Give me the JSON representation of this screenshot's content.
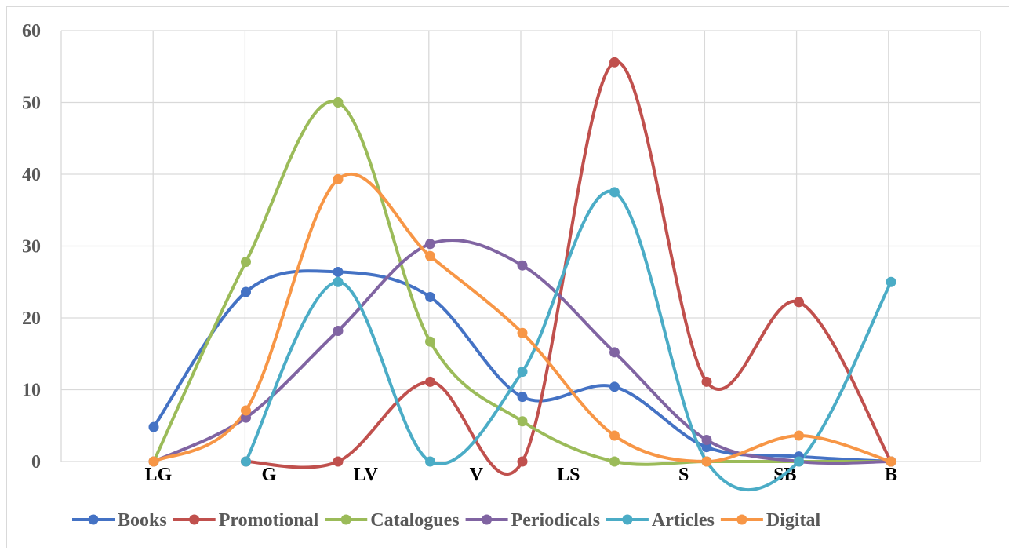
{
  "chart_data": {
    "type": "line",
    "title": "",
    "xlabel": "",
    "ylabel": "",
    "ylim": [
      0,
      60
    ],
    "yticks": [
      "0",
      "10",
      "20",
      "30",
      "40",
      "50",
      "60"
    ],
    "grid": true,
    "smooth": true,
    "legend_position": "bottom",
    "points_x": [
      0,
      1,
      2,
      3,
      4,
      5,
      6,
      7,
      8
    ],
    "category_labels": [
      {
        "label": "LG",
        "at": 0.05
      },
      {
        "label": "G",
        "at": 1.25
      },
      {
        "label": "LV",
        "at": 2.3
      },
      {
        "label": "V",
        "at": 3.5
      },
      {
        "label": "LS",
        "at": 4.5
      },
      {
        "label": "S",
        "at": 5.75
      },
      {
        "label": "SB",
        "at": 6.85
      },
      {
        "label": "B",
        "at": 8.0
      }
    ],
    "series": [
      {
        "name": "Books",
        "color": "#4472C4",
        "values": [
          4.8,
          23.6,
          26.4,
          22.9,
          9.0,
          10.4,
          2.0,
          0.7,
          0.0
        ]
      },
      {
        "name": "Promotional",
        "color": "#C0504D",
        "values": [
          null,
          0.0,
          0.0,
          11.1,
          0.0,
          55.6,
          11.1,
          22.2,
          0.0
        ]
      },
      {
        "name": "Catalogues",
        "color": "#9BBB59",
        "values": [
          0.0,
          27.8,
          50.0,
          16.7,
          5.6,
          0.0,
          0.0,
          0.0,
          0.0
        ]
      },
      {
        "name": "Periodicals",
        "color": "#8064A2",
        "values": [
          0.0,
          6.1,
          18.2,
          30.3,
          27.3,
          15.2,
          3.0,
          0.0,
          0.0
        ]
      },
      {
        "name": "Articles",
        "color": "#4BACC6",
        "values": [
          null,
          0.0,
          25.0,
          0.0,
          12.5,
          37.5,
          0.0,
          0.0,
          25.0
        ]
      },
      {
        "name": "Digital",
        "color": "#F79646",
        "values": [
          0.0,
          7.1,
          39.3,
          28.6,
          17.9,
          3.6,
          0.0,
          3.6,
          0.0
        ]
      }
    ]
  }
}
